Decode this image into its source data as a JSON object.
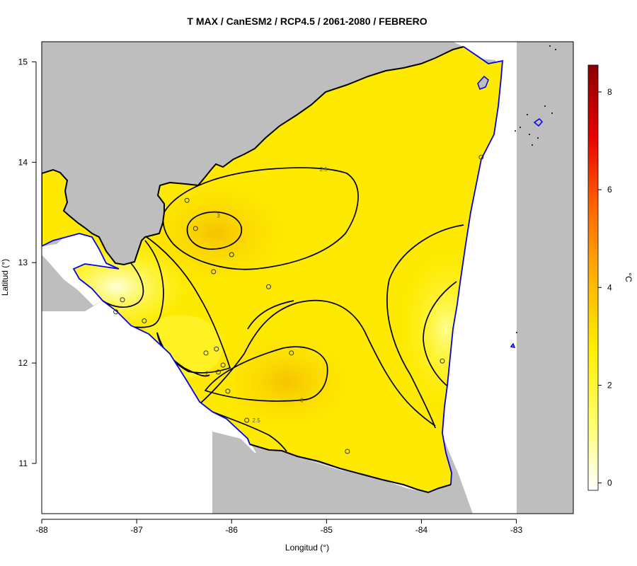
{
  "chart_data": {
    "type": "heatmap",
    "title": "T MAX / CanESM2 / RCP4.5 / 2061-2080 / FEBRERO",
    "xlabel": "Longitud (°)",
    "ylabel": "Latitud (°)",
    "xlim": [
      -88,
      -82.4
    ],
    "ylim": [
      10.5,
      15.2
    ],
    "xticks": [
      -88,
      -87,
      -86,
      -85,
      -84,
      -83
    ],
    "yticks": [
      11,
      12,
      13,
      14,
      15
    ],
    "colorbar": {
      "label": "°C",
      "range": [
        -0.15,
        8.55
      ],
      "ticks": [
        0,
        2,
        4,
        6,
        8
      ],
      "colors": [
        "#ffffff",
        "#ffff66",
        "#ffee00",
        "#ffb300",
        "#ff6600",
        "#e60000",
        "#8b0000"
      ]
    },
    "colors": {
      "land_outside": "#bebebe",
      "coast": "#0000ee",
      "border": "#000000",
      "contour": "#000000"
    },
    "contour_labels": [
      {
        "value": "2.5",
        "lon": -85.03,
        "lat": 13.93
      },
      {
        "value": "3",
        "lon": -86.14,
        "lat": 13.47
      },
      {
        "value": "3",
        "lon": -85.26,
        "lat": 11.63
      },
      {
        "value": "2.5",
        "lon": -85.74,
        "lat": 11.43
      },
      {
        "value": "2",
        "lon": -86.26,
        "lat": 11.9
      }
    ],
    "stations": [
      {
        "lon": -86.47,
        "lat": 13.62
      },
      {
        "lon": -86.38,
        "lat": 13.34
      },
      {
        "lon": -86.0,
        "lat": 13.08
      },
      {
        "lon": -86.19,
        "lat": 12.91
      },
      {
        "lon": -85.61,
        "lat": 12.76
      },
      {
        "lon": -87.15,
        "lat": 12.63
      },
      {
        "lon": -87.22,
        "lat": 12.51
      },
      {
        "lon": -86.92,
        "lat": 12.42
      },
      {
        "lon": -86.16,
        "lat": 12.14
      },
      {
        "lon": -86.27,
        "lat": 12.1
      },
      {
        "lon": -85.37,
        "lat": 12.1
      },
      {
        "lon": -86.09,
        "lat": 11.98
      },
      {
        "lon": -86.14,
        "lat": 11.91
      },
      {
        "lon": -86.04,
        "lat": 11.72
      },
      {
        "lon": -85.84,
        "lat": 11.43
      },
      {
        "lon": -84.78,
        "lat": 11.12
      },
      {
        "lon": -83.78,
        "lat": 12.02
      },
      {
        "lon": -83.37,
        "lat": 14.05
      }
    ]
  }
}
